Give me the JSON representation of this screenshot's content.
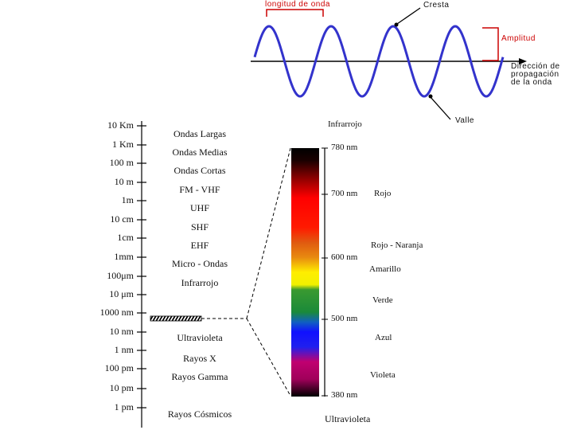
{
  "wave": {
    "wavelength_label": "longitud de onda",
    "crest_label": "Cresta",
    "amplitude_label": "Amplitud",
    "direction_label": [
      "Dirección de",
      "propagación",
      "de la onda"
    ],
    "trough_label": "Valle",
    "colors": {
      "wave": "#3333cc",
      "annotation": "#cc0000",
      "axis": "#000000"
    }
  },
  "scale": {
    "ticks": [
      "10 Km",
      "1 Km",
      "100 m",
      "10 m",
      "1m",
      "10 cm",
      "1cm",
      "1mm",
      "100μm",
      "10 μm",
      "1000 nm",
      "10 nm",
      "1 nm",
      "100 pm",
      "10 pm",
      "1 pm"
    ]
  },
  "bands": [
    "Ondas Largas",
    "Ondas Medias",
    "Ondas Cortas",
    "FM - VHF",
    "UHF",
    "SHF",
    "EHF",
    "Micro - Ondas",
    "Infrarrojo",
    "Ultravioleta",
    "Rayos X",
    "Rayos Gamma",
    "Rayos Cósmicos"
  ],
  "visible": {
    "top_label": "Infrarrojo",
    "bottom_label": "Ultravioleta",
    "nm_labels": [
      "780 nm",
      "700 nm",
      "600 nm",
      "500 nm",
      "380 nm"
    ],
    "color_names": [
      "Rojo",
      "Rojo - Naranja",
      "Amarillo",
      "Verde",
      "Azul",
      "Violeta"
    ]
  }
}
